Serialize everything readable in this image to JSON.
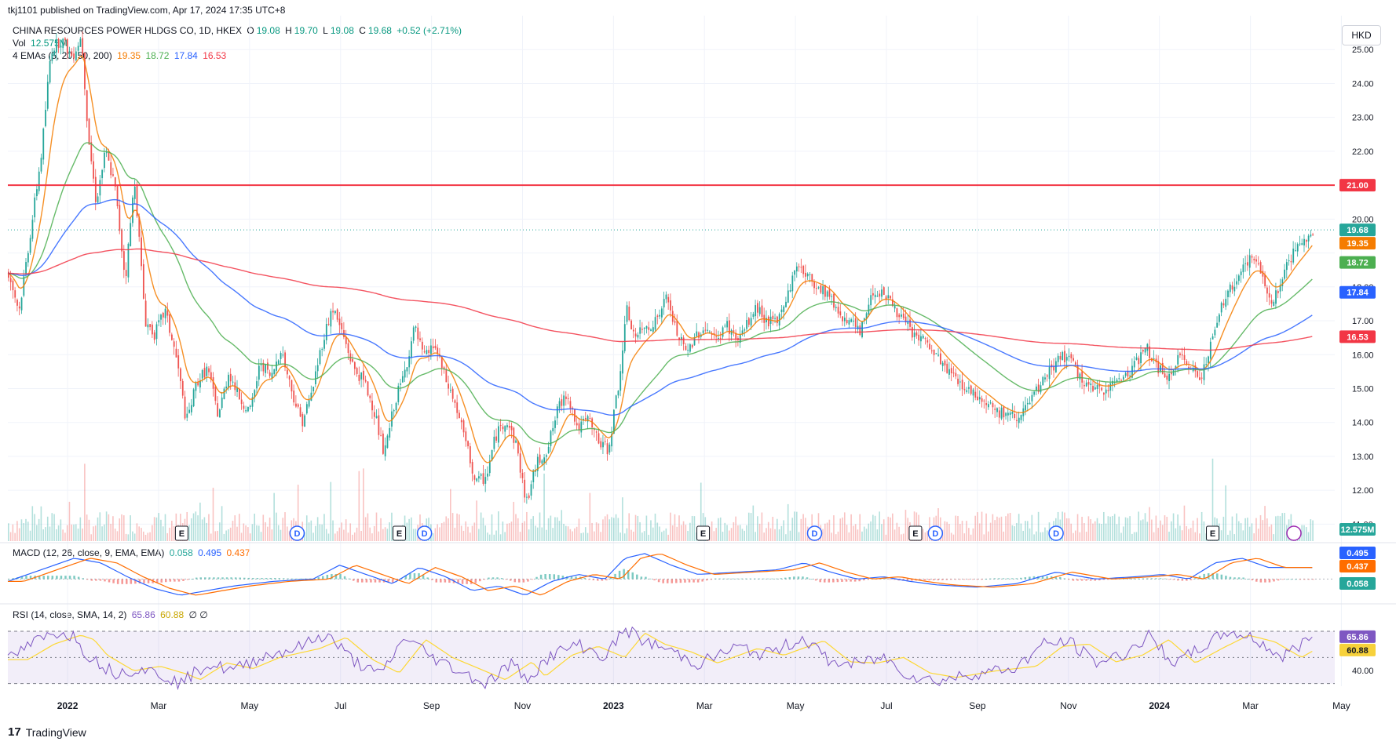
{
  "published_line": "tkj1101 published on TradingView.com, Apr 17, 2024 17:35 UTC+8",
  "legend": {
    "symbol": "CHINA RESOURCES POWER HLDGS CO, 1D, HKEX",
    "o_label": "O",
    "o": "19.08",
    "h_label": "H",
    "h": "19.70",
    "l_label": "L",
    "l": "19.08",
    "c_label": "C",
    "c": "19.68",
    "change": "+0.52 (+2.71%)",
    "vol_label": "Vol",
    "vol_value": "12.575M",
    "ema_label": "4 EMAs (5, 20, 50, 200)",
    "ema_values": [
      "19.35",
      "18.72",
      "17.84",
      "16.53"
    ],
    "macd_label": "MACD (12, 26, close, 9, EMA, EMA)",
    "macd_values": [
      "0.058",
      "0.495",
      "0.437"
    ],
    "rsi_label": "RSI (14, close, SMA, 14, 2)",
    "rsi_values": [
      "65.86",
      "60.88"
    ],
    "rsi_extra": "∅ ∅"
  },
  "currency_button": "HKD",
  "footer_brand": "TradingView",
  "colors": {
    "up": "#26a69a",
    "down": "#ef5350",
    "ema5": "#f57c00",
    "ema20": "#4caf50",
    "ema50": "#2962ff",
    "ema200": "#f23645",
    "hline": "#f23645",
    "macd": "#2962ff",
    "signal": "#ff6d00",
    "rsi": "#7e57c2",
    "rsi_ma": "#fdd835",
    "rsi_band": "#7e57c2"
  },
  "chart_data": {
    "type": "candlestick",
    "title": "CHINA RESOURCES POWER HLDGS CO, 1D, HKEX",
    "x_range": [
      "2021-11-01",
      "2024-04-17"
    ],
    "x_ticks": [
      "2022",
      "Mar",
      "May",
      "Jul",
      "Sep",
      "Nov",
      "2023",
      "Mar",
      "May",
      "Jul",
      "Sep",
      "Nov",
      "2024",
      "Mar",
      "May"
    ],
    "y_ticks": [
      25.0,
      24.0,
      23.0,
      22.0,
      21.0,
      20.0,
      19.0,
      18.0,
      17.0,
      16.0,
      15.0,
      14.0,
      13.0,
      12.0,
      11.0
    ],
    "y_tick_labels": [
      "25.00",
      "24.00",
      "23.00",
      "22.00",
      "",
      "20.00",
      "",
      "18.00",
      "17.00",
      "16.00",
      "15.00",
      "14.00",
      "13.00",
      "12.00",
      "11.00"
    ],
    "ylim": [
      10.5,
      26.0
    ],
    "horizontal_line": {
      "value": 21.0,
      "label": "21.00"
    },
    "last_close": {
      "value": 19.68,
      "label": "19.68"
    },
    "price_path": [
      [
        0.0,
        18.4
      ],
      [
        0.008,
        17.3
      ],
      [
        0.018,
        20.0
      ],
      [
        0.025,
        22.0
      ],
      [
        0.032,
        25.0
      ],
      [
        0.04,
        25.3
      ],
      [
        0.048,
        24.8
      ],
      [
        0.055,
        25.4
      ],
      [
        0.06,
        22.5
      ],
      [
        0.066,
        20.5
      ],
      [
        0.073,
        22.0
      ],
      [
        0.08,
        21.0
      ],
      [
        0.088,
        18.2
      ],
      [
        0.095,
        21.2
      ],
      [
        0.103,
        17.0
      ],
      [
        0.11,
        16.6
      ],
      [
        0.118,
        17.3
      ],
      [
        0.127,
        15.8
      ],
      [
        0.134,
        14.0
      ],
      [
        0.142,
        15.2
      ],
      [
        0.15,
        15.6
      ],
      [
        0.158,
        14.2
      ],
      [
        0.166,
        15.5
      ],
      [
        0.173,
        14.8
      ],
      [
        0.182,
        14.3
      ],
      [
        0.19,
        15.8
      ],
      [
        0.198,
        15.3
      ],
      [
        0.205,
        16.2
      ],
      [
        0.213,
        15.0
      ],
      [
        0.221,
        14.0
      ],
      [
        0.228,
        14.8
      ],
      [
        0.236,
        16.3
      ],
      [
        0.244,
        17.4
      ],
      [
        0.252,
        16.6
      ],
      [
        0.26,
        15.6
      ],
      [
        0.268,
        15.2
      ],
      [
        0.276,
        14.3
      ],
      [
        0.283,
        13.0
      ],
      [
        0.291,
        14.6
      ],
      [
        0.298,
        15.4
      ],
      [
        0.306,
        16.8
      ],
      [
        0.313,
        15.9
      ],
      [
        0.321,
        16.3
      ],
      [
        0.329,
        15.3
      ],
      [
        0.336,
        14.6
      ],
      [
        0.344,
        13.5
      ],
      [
        0.352,
        12.2
      ],
      [
        0.36,
        12.4
      ],
      [
        0.367,
        13.6
      ],
      [
        0.375,
        14.1
      ],
      [
        0.383,
        13.3
      ],
      [
        0.39,
        11.6
      ],
      [
        0.398,
        12.8
      ],
      [
        0.406,
        13.2
      ],
      [
        0.414,
        14.4
      ],
      [
        0.421,
        14.9
      ],
      [
        0.429,
        13.8
      ],
      [
        0.437,
        14.1
      ],
      [
        0.445,
        13.4
      ],
      [
        0.452,
        13.2
      ],
      [
        0.46,
        15.2
      ],
      [
        0.466,
        17.3
      ],
      [
        0.472,
        16.5
      ],
      [
        0.48,
        16.8
      ],
      [
        0.488,
        17.0
      ],
      [
        0.496,
        17.7
      ],
      [
        0.503,
        16.7
      ],
      [
        0.511,
        16.0
      ],
      [
        0.518,
        16.6
      ],
      [
        0.526,
        16.8
      ],
      [
        0.533,
        16.4
      ],
      [
        0.541,
        16.9
      ],
      [
        0.549,
        16.4
      ],
      [
        0.557,
        16.9
      ],
      [
        0.564,
        17.4
      ],
      [
        0.571,
        17.0
      ],
      [
        0.579,
        16.9
      ],
      [
        0.587,
        17.8
      ],
      [
        0.595,
        18.7
      ],
      [
        0.602,
        18.3
      ],
      [
        0.61,
        18.0
      ],
      [
        0.618,
        17.8
      ],
      [
        0.626,
        17.2
      ],
      [
        0.634,
        17.0
      ],
      [
        0.642,
        16.6
      ],
      [
        0.65,
        17.8
      ],
      [
        0.658,
        17.9
      ],
      [
        0.666,
        17.5
      ],
      [
        0.674,
        17.0
      ],
      [
        0.682,
        16.6
      ],
      [
        0.69,
        16.4
      ],
      [
        0.698,
        16.0
      ],
      [
        0.706,
        15.6
      ],
      [
        0.714,
        15.3
      ],
      [
        0.722,
        15.0
      ],
      [
        0.73,
        14.8
      ],
      [
        0.738,
        14.6
      ],
      [
        0.746,
        14.3
      ],
      [
        0.754,
        14.2
      ],
      [
        0.762,
        14.2
      ],
      [
        0.77,
        14.6
      ],
      [
        0.778,
        15.1
      ],
      [
        0.786,
        15.6
      ],
      [
        0.794,
        16.0
      ],
      [
        0.802,
        15.7
      ],
      [
        0.81,
        15.2
      ],
      [
        0.818,
        14.9
      ],
      [
        0.826,
        15.0
      ],
      [
        0.834,
        15.2
      ],
      [
        0.842,
        15.4
      ],
      [
        0.85,
        15.8
      ],
      [
        0.858,
        16.2
      ],
      [
        0.866,
        15.6
      ],
      [
        0.874,
        15.3
      ],
      [
        0.882,
        15.9
      ],
      [
        0.89,
        15.7
      ],
      [
        0.898,
        15.3
      ],
      [
        0.906,
        16.3
      ],
      [
        0.914,
        17.4
      ],
      [
        0.922,
        18.0
      ],
      [
        0.93,
        18.6
      ],
      [
        0.938,
        18.9
      ],
      [
        0.946,
        18.2
      ],
      [
        0.952,
        17.5
      ],
      [
        0.96,
        18.3
      ],
      [
        0.968,
        19.0
      ],
      [
        0.976,
        19.3
      ],
      [
        0.983,
        19.68
      ]
    ],
    "emas": [
      {
        "name": "EMA 5",
        "last": 19.35
      },
      {
        "name": "EMA 20",
        "last": 18.72
      },
      {
        "name": "EMA 50",
        "last": 17.84
      },
      {
        "name": "EMA 200",
        "last": 16.53
      }
    ],
    "events": [
      {
        "x": 0.131,
        "label": "E"
      },
      {
        "x": 0.218,
        "label": "D"
      },
      {
        "x": 0.295,
        "label": "E"
      },
      {
        "x": 0.314,
        "label": "D"
      },
      {
        "x": 0.524,
        "label": "E"
      },
      {
        "x": 0.608,
        "label": "D"
      },
      {
        "x": 0.684,
        "label": "E"
      },
      {
        "x": 0.699,
        "label": "D"
      },
      {
        "x": 0.79,
        "label": "D"
      },
      {
        "x": 0.908,
        "label": "E"
      }
    ],
    "macd": {
      "last_macd": 0.495,
      "last_signal": 0.437,
      "last_hist": 0.058,
      "ylim": [
        -0.9,
        1.3
      ],
      "path": [
        [
          0.0,
          -0.1
        ],
        [
          0.03,
          0.5
        ],
        [
          0.05,
          0.9
        ],
        [
          0.07,
          0.7
        ],
        [
          0.09,
          0.1
        ],
        [
          0.11,
          -0.4
        ],
        [
          0.13,
          -0.7
        ],
        [
          0.15,
          -0.5
        ],
        [
          0.17,
          -0.3
        ],
        [
          0.2,
          -0.1
        ],
        [
          0.23,
          0.0
        ],
        [
          0.25,
          0.6
        ],
        [
          0.27,
          0.2
        ],
        [
          0.29,
          -0.2
        ],
        [
          0.31,
          0.5
        ],
        [
          0.33,
          0.1
        ],
        [
          0.35,
          -0.5
        ],
        [
          0.37,
          -0.3
        ],
        [
          0.39,
          -0.7
        ],
        [
          0.41,
          -0.1
        ],
        [
          0.43,
          0.2
        ],
        [
          0.45,
          0.0
        ],
        [
          0.465,
          0.9
        ],
        [
          0.48,
          1.1
        ],
        [
          0.5,
          0.6
        ],
        [
          0.52,
          0.2
        ],
        [
          0.55,
          0.3
        ],
        [
          0.58,
          0.4
        ],
        [
          0.6,
          0.7
        ],
        [
          0.62,
          0.3
        ],
        [
          0.64,
          0.0
        ],
        [
          0.66,
          0.1
        ],
        [
          0.68,
          -0.1
        ],
        [
          0.7,
          -0.25
        ],
        [
          0.73,
          -0.35
        ],
        [
          0.76,
          -0.2
        ],
        [
          0.79,
          0.3
        ],
        [
          0.82,
          0.0
        ],
        [
          0.85,
          0.1
        ],
        [
          0.87,
          0.2
        ],
        [
          0.89,
          0.0
        ],
        [
          0.91,
          0.7
        ],
        [
          0.93,
          0.9
        ],
        [
          0.95,
          0.5
        ],
        [
          0.97,
          0.5
        ],
        [
          0.983,
          0.495
        ]
      ]
    },
    "rsi": {
      "last_rsi": 65.86,
      "last_ma": 60.88,
      "ylim": [
        25,
        85
      ],
      "upper_band": 70,
      "lower_band": 30,
      "y_tick": "40.00",
      "path": [
        [
          0.0,
          48
        ],
        [
          0.02,
          62
        ],
        [
          0.04,
          70
        ],
        [
          0.05,
          66
        ],
        [
          0.06,
          52
        ],
        [
          0.08,
          38
        ],
        [
          0.1,
          42
        ],
        [
          0.12,
          35
        ],
        [
          0.13,
          30
        ],
        [
          0.15,
          45
        ],
        [
          0.17,
          40
        ],
        [
          0.19,
          50
        ],
        [
          0.22,
          58
        ],
        [
          0.24,
          68
        ],
        [
          0.26,
          48
        ],
        [
          0.28,
          36
        ],
        [
          0.3,
          66
        ],
        [
          0.32,
          50
        ],
        [
          0.34,
          40
        ],
        [
          0.36,
          30
        ],
        [
          0.38,
          46
        ],
        [
          0.39,
          33
        ],
        [
          0.41,
          52
        ],
        [
          0.43,
          60
        ],
        [
          0.45,
          50
        ],
        [
          0.465,
          72
        ],
        [
          0.48,
          62
        ],
        [
          0.5,
          55
        ],
        [
          0.52,
          45
        ],
        [
          0.55,
          58
        ],
        [
          0.57,
          52
        ],
        [
          0.6,
          65
        ],
        [
          0.62,
          46
        ],
        [
          0.64,
          45
        ],
        [
          0.66,
          50
        ],
        [
          0.68,
          36
        ],
        [
          0.7,
          32
        ],
        [
          0.73,
          38
        ],
        [
          0.76,
          42
        ],
        [
          0.78,
          60
        ],
        [
          0.8,
          62
        ],
        [
          0.82,
          46
        ],
        [
          0.84,
          52
        ],
        [
          0.86,
          66
        ],
        [
          0.88,
          45
        ],
        [
          0.9,
          58
        ],
        [
          0.92,
          70
        ],
        [
          0.94,
          64
        ],
        [
          0.96,
          50
        ],
        [
          0.983,
          65.86
        ]
      ]
    }
  }
}
